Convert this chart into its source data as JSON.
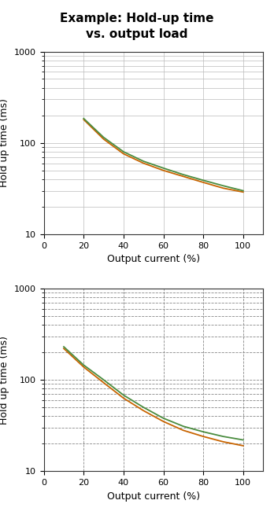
{
  "title_line1": "Example: Hold-up time",
  "title_line2": "vs. output load",
  "title_fontsize": 11,
  "xlabel": "Output current (%)",
  "ylabel": "Hold up time (ms)",
  "xlim": [
    0,
    110
  ],
  "ylim": [
    10,
    1000
  ],
  "xticks": [
    0,
    20,
    40,
    60,
    80,
    100
  ],
  "yticks": [
    10,
    100,
    1000
  ],
  "chart1": {
    "green_x": [
      20,
      30,
      40,
      50,
      60,
      70,
      80,
      90,
      100
    ],
    "green_y": [
      185,
      115,
      80,
      63,
      53,
      45,
      39,
      34,
      30
    ],
    "orange_x": [
      20,
      30,
      40,
      50,
      60,
      70,
      80,
      90,
      100
    ],
    "orange_y": [
      180,
      110,
      76,
      60,
      50,
      43,
      37,
      32,
      29
    ],
    "green_color": "#4a8c3f",
    "orange_color": "#c86400",
    "grid_style": "solid",
    "grid_color": "#bbbbbb",
    "grid_linewidth": 0.5
  },
  "chart2": {
    "green_x": [
      10,
      20,
      30,
      40,
      50,
      60,
      70,
      80,
      90,
      100
    ],
    "green_y": [
      230,
      145,
      100,
      68,
      50,
      38,
      31,
      27,
      24,
      22
    ],
    "orange_x": [
      10,
      20,
      30,
      40,
      50,
      60,
      70,
      80,
      90,
      100
    ],
    "orange_y": [
      220,
      138,
      93,
      63,
      46,
      35,
      28,
      24,
      21,
      19
    ],
    "green_color": "#4a8c3f",
    "orange_color": "#c86400",
    "grid_style": "dashed",
    "grid_color": "#888888",
    "grid_linewidth": 0.6
  },
  "bg_color": "#ffffff",
  "label_fontsize": 9,
  "tick_fontsize": 8
}
